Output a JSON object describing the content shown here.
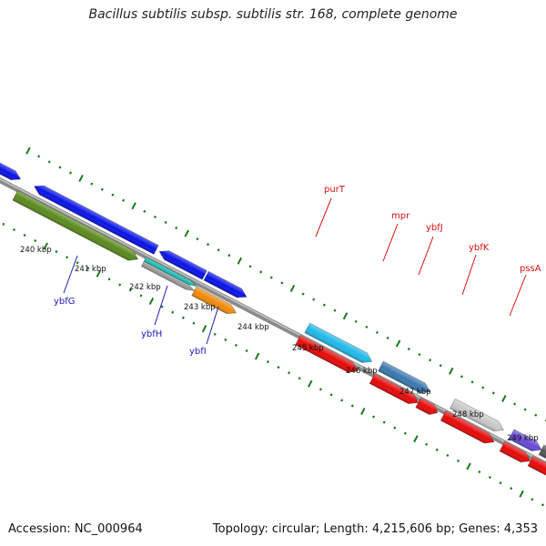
{
  "title": "Bacillus subtilis subsp. subtilis str. 168, complete genome",
  "footer": {
    "accession": "Accession: NC_000964",
    "summary": "Topology: circular; Length: 4,215,606 bp; Genes: 4,353"
  },
  "scale_labels": [
    "240 kbp",
    "241 kbp",
    "242 kbp",
    "243 kbp",
    "244 kbp",
    "245 kbp",
    "246 kbp",
    "247 kbp",
    "248 kbp",
    "249 kbp"
  ],
  "gene_labels": {
    "forward": [
      "ybfG",
      "ybfH",
      "ybfI"
    ],
    "reverse": [
      "purT",
      "mpr",
      "ybfJ",
      "ybfK",
      "pssA"
    ]
  },
  "colors": {
    "backbone": "#888888",
    "ticks": "#1a7a1a",
    "forward_label": "#1a1ab8",
    "reverse_label": "#d81010",
    "blue": "#0a14e6",
    "olive": "#5a8a1e",
    "cyan": "#20b8e8",
    "steel": "#3a78b0",
    "red": "#e60a0a",
    "grey": "#c8c8c8",
    "orange": "#f08a0a",
    "teal": "#18c0b8",
    "purple": "#6a4ad8",
    "dark": "#555555"
  }
}
